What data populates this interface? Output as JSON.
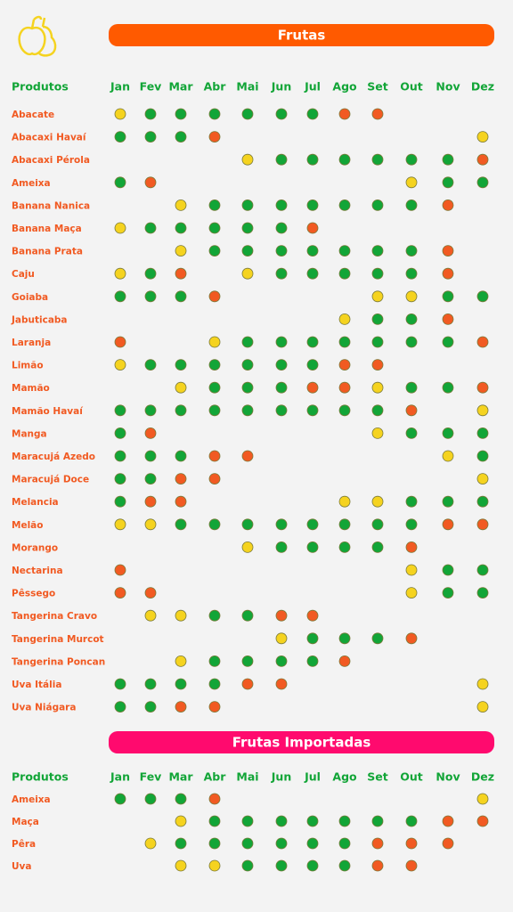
{
  "sections": [
    {
      "title": "Frutas",
      "bar_color": "#ff5a00",
      "header_label": "Produtos",
      "months": [
        "Jan",
        "Fev",
        "Mar",
        "Abr",
        "Mai",
        "Jun",
        "Jul",
        "Ago",
        "Set",
        "Out",
        "Nov",
        "Dez"
      ],
      "rows": [
        {
          "name": "Abacate",
          "cells": [
            "#f5d31f",
            "#12a537",
            "#12a537",
            "#12a537",
            "#12a537",
            "#12a537",
            "#12a537",
            "#f15a22",
            "#f15a22",
            null,
            null,
            null
          ]
        },
        {
          "name": "Abacaxi Havaí",
          "cells": [
            "#12a537",
            "#12a537",
            "#12a537",
            "#f15a22",
            null,
            null,
            null,
            null,
            null,
            null,
            null,
            "#f5d31f"
          ]
        },
        {
          "name": "Abacaxi Pérola",
          "cells": [
            null,
            null,
            null,
            null,
            "#f5d31f",
            "#12a537",
            "#12a537",
            "#12a537",
            "#12a537",
            "#12a537",
            "#12a537",
            "#f15a22"
          ]
        },
        {
          "name": "Ameixa",
          "cells": [
            "#12a537",
            "#f15a22",
            null,
            null,
            null,
            null,
            null,
            null,
            null,
            "#f5d31f",
            "#12a537",
            "#12a537"
          ]
        },
        {
          "name": "Banana Nanica",
          "cells": [
            null,
            null,
            "#f5d31f",
            "#12a537",
            "#12a537",
            "#12a537",
            "#12a537",
            "#12a537",
            "#12a537",
            "#12a537",
            "#f15a22",
            null
          ]
        },
        {
          "name": "Banana Maça",
          "cells": [
            "#f5d31f",
            "#12a537",
            "#12a537",
            "#12a537",
            "#12a537",
            "#12a537",
            "#f15a22",
            null,
            null,
            null,
            null,
            null
          ]
        },
        {
          "name": "Banana Prata",
          "cells": [
            null,
            null,
            "#f5d31f",
            "#12a537",
            "#12a537",
            "#12a537",
            "#12a537",
            "#12a537",
            "#12a537",
            "#12a537",
            "#f15a22",
            null
          ]
        },
        {
          "name": "Caju",
          "cells": [
            "#f5d31f",
            "#12a537",
            "#f15a22",
            null,
            "#f5d31f",
            "#12a537",
            "#12a537",
            "#12a537",
            "#12a537",
            "#12a537",
            "#f15a22",
            null
          ]
        },
        {
          "name": "Goiaba",
          "cells": [
            "#12a537",
            "#12a537",
            "#12a537",
            "#f15a22",
            null,
            null,
            null,
            null,
            "#f5d31f",
            "#f5d31f",
            "#12a537",
            "#12a537"
          ]
        },
        {
          "name": "Jabuticaba",
          "cells": [
            null,
            null,
            null,
            null,
            null,
            null,
            null,
            "#f5d31f",
            "#12a537",
            "#12a537",
            "#f15a22",
            null
          ]
        },
        {
          "name": "Laranja",
          "cells": [
            "#f15a22",
            null,
            null,
            "#f5d31f",
            "#12a537",
            "#12a537",
            "#12a537",
            "#12a537",
            "#12a537",
            "#12a537",
            "#12a537",
            "#f15a22"
          ]
        },
        {
          "name": "Limão",
          "cells": [
            "#f5d31f",
            "#12a537",
            "#12a537",
            "#12a537",
            "#12a537",
            "#12a537",
            "#12a537",
            "#f15a22",
            "#f15a22",
            null,
            null,
            null
          ]
        },
        {
          "name": "Mamão",
          "cells": [
            null,
            null,
            "#f5d31f",
            "#12a537",
            "#12a537",
            "#12a537",
            "#f15a22",
            "#f15a22",
            "#f5d31f",
            "#12a537",
            "#12a537",
            "#f15a22"
          ]
        },
        {
          "name": "Mamão Havaí",
          "cells": [
            "#12a537",
            "#12a537",
            "#12a537",
            "#12a537",
            "#12a537",
            "#12a537",
            "#12a537",
            "#12a537",
            "#12a537",
            "#f15a22",
            null,
            "#f5d31f"
          ]
        },
        {
          "name": "Manga",
          "cells": [
            "#12a537",
            "#f15a22",
            null,
            null,
            null,
            null,
            null,
            null,
            "#f5d31f",
            "#12a537",
            "#12a537",
            "#12a537"
          ]
        },
        {
          "name": "Maracujá Azedo",
          "cells": [
            "#12a537",
            "#12a537",
            "#12a537",
            "#f15a22",
            "#f15a22",
            null,
            null,
            null,
            null,
            null,
            "#f5d31f",
            "#12a537"
          ]
        },
        {
          "name": "Maracujá Doce",
          "cells": [
            "#12a537",
            "#12a537",
            "#f15a22",
            "#f15a22",
            null,
            null,
            null,
            null,
            null,
            null,
            null,
            "#f5d31f"
          ]
        },
        {
          "name": "Melancia",
          "cells": [
            "#12a537",
            "#f15a22",
            "#f15a22",
            null,
            null,
            null,
            null,
            "#f5d31f",
            "#f5d31f",
            "#12a537",
            "#12a537",
            "#12a537"
          ]
        },
        {
          "name": "Melão",
          "cells": [
            "#f5d31f",
            "#f5d31f",
            "#12a537",
            "#12a537",
            "#12a537",
            "#12a537",
            "#12a537",
            "#12a537",
            "#12a537",
            "#12a537",
            "#f15a22",
            "#f15a22"
          ]
        },
        {
          "name": "Morango",
          "cells": [
            null,
            null,
            null,
            null,
            "#f5d31f",
            "#12a537",
            "#12a537",
            "#12a537",
            "#12a537",
            "#f15a22",
            null,
            null
          ]
        },
        {
          "name": "Nectarina",
          "cells": [
            "#f15a22",
            null,
            null,
            null,
            null,
            null,
            null,
            null,
            null,
            "#f5d31f",
            "#12a537",
            "#12a537"
          ]
        },
        {
          "name": "Pêssego",
          "cells": [
            "#f15a22",
            "#f15a22",
            null,
            null,
            null,
            null,
            null,
            null,
            null,
            "#f5d31f",
            "#12a537",
            "#12a537"
          ]
        },
        {
          "name": "Tangerina Cravo",
          "cells": [
            null,
            "#f5d31f",
            "#f5d31f",
            "#12a537",
            "#12a537",
            "#f15a22",
            "#f15a22",
            null,
            null,
            null,
            null,
            null
          ]
        },
        {
          "name": "Tangerina Murcot",
          "cells": [
            null,
            null,
            null,
            null,
            null,
            "#f5d31f",
            "#12a537",
            "#12a537",
            "#12a537",
            "#f15a22",
            null,
            null
          ]
        },
        {
          "name": "Tangerina Poncan",
          "cells": [
            null,
            null,
            "#f5d31f",
            "#12a537",
            "#12a537",
            "#12a537",
            "#12a537",
            "#f15a22",
            null,
            null,
            null,
            null
          ]
        },
        {
          "name": "Uva Itália",
          "cells": [
            "#12a537",
            "#12a537",
            "#12a537",
            "#12a537",
            "#f15a22",
            "#f15a22",
            null,
            null,
            null,
            null,
            null,
            "#f5d31f"
          ]
        },
        {
          "name": "Uva Niágara",
          "cells": [
            "#12a537",
            "#12a537",
            "#f15a22",
            "#f15a22",
            null,
            null,
            null,
            null,
            null,
            null,
            null,
            "#f5d31f"
          ]
        }
      ]
    },
    {
      "title": "Frutas Importadas",
      "bar_color": "#ff0a6e",
      "header_label": "Produtos",
      "months": [
        "Jan",
        "Fev",
        "Mar",
        "Abr",
        "Mai",
        "Jun",
        "Jul",
        "Ago",
        "Set",
        "Out",
        "Nov",
        "Dez"
      ],
      "rows": [
        {
          "name": "Ameixa",
          "cells": [
            "#12a537",
            "#12a537",
            "#12a537",
            "#f15a22",
            null,
            null,
            null,
            null,
            null,
            null,
            null,
            "#f5d31f"
          ]
        },
        {
          "name": "Maça",
          "cells": [
            null,
            null,
            "#f5d31f",
            "#12a537",
            "#12a537",
            "#12a537",
            "#12a537",
            "#12a537",
            "#12a537",
            "#12a537",
            "#f15a22",
            "#f15a22"
          ]
        },
        {
          "name": "Pêra",
          "cells": [
            null,
            "#f5d31f",
            "#12a537",
            "#12a537",
            "#12a537",
            "#12a537",
            "#12a537",
            "#12a537",
            "#f15a22",
            "#f15a22",
            "#f15a22",
            null
          ]
        },
        {
          "name": "Uva",
          "cells": [
            null,
            null,
            "#f5d31f",
            "#f5d31f",
            "#12a537",
            "#12a537",
            "#12a537",
            "#12a537",
            "#f15a22",
            "#f15a22",
            null,
            null
          ]
        }
      ]
    }
  ]
}
